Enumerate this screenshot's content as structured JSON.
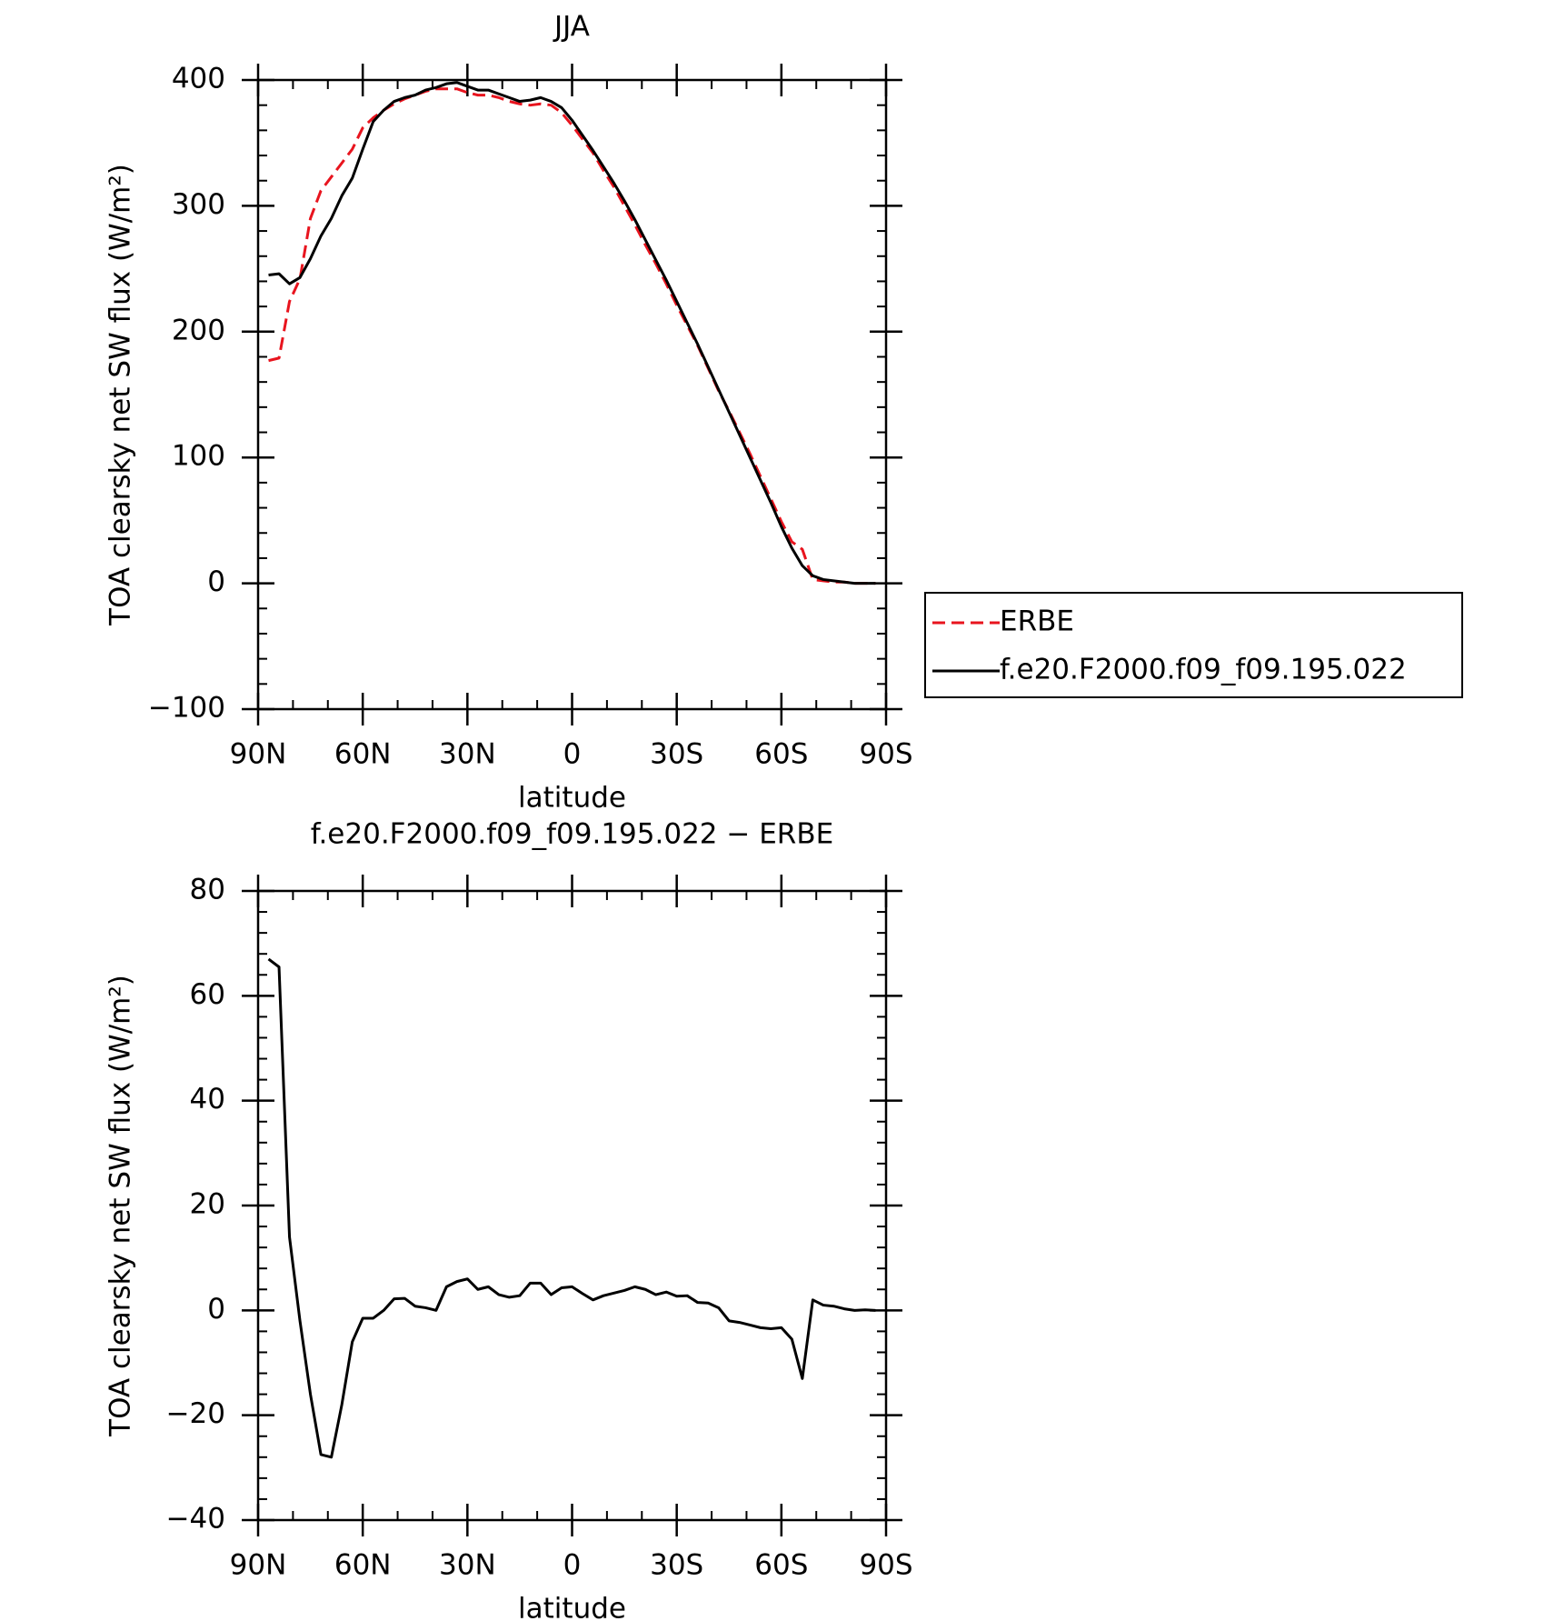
{
  "chart_data": [
    {
      "type": "line",
      "title": "JJA",
      "x_label": "latitude",
      "y_label": "TOA clearsky net SW flux (W/m²)",
      "x": [
        87,
        84,
        81,
        78,
        75,
        72,
        69,
        66,
        63,
        60,
        57,
        54,
        51,
        48,
        45,
        42,
        39,
        36,
        33,
        30,
        27,
        24,
        21,
        18,
        15,
        12,
        9,
        6,
        3,
        0,
        -3,
        -6,
        -9,
        -12,
        -15,
        -18,
        -21,
        -24,
        -27,
        -30,
        -33,
        -36,
        -39,
        -42,
        -45,
        -48,
        -51,
        -54,
        -57,
        -60,
        -63,
        -66,
        -69,
        -72,
        -75,
        -78,
        -81,
        -84,
        -87
      ],
      "series": [
        {
          "name": "ERBE",
          "color": "#e8141e",
          "linestyle": "dashed",
          "values": [
            177,
            179,
            224,
            242,
            290,
            312,
            323,
            334,
            345,
            362,
            370,
            376,
            381,
            385,
            388,
            391,
            393,
            393,
            393,
            390,
            388,
            388,
            386,
            383,
            381,
            380,
            381,
            380,
            374,
            364,
            353,
            342,
            328,
            315,
            300,
            285,
            269,
            254,
            238,
            221,
            205,
            189,
            171,
            153,
            137,
            120,
            103,
            85,
            67,
            49,
            33,
            27,
            3,
            2,
            1,
            1,
            0,
            0,
            0
          ]
        },
        {
          "name": "f.e20.F2000.f09_f09.195.022",
          "color": "#000000",
          "linestyle": "solid",
          "values": [
            245,
            246,
            238,
            243,
            258,
            276,
            290,
            308,
            322,
            345,
            367,
            376,
            383,
            386,
            388,
            392,
            394,
            397,
            398,
            395,
            392,
            392,
            389,
            386,
            383,
            384,
            386,
            383,
            378,
            368,
            356,
            344,
            331,
            318,
            304,
            289,
            273,
            257,
            241,
            224,
            207,
            190,
            172,
            154,
            136,
            118,
            100,
            82,
            64,
            45,
            28,
            14,
            6,
            3,
            2,
            1,
            0,
            0,
            0
          ]
        }
      ],
      "xlim": [
        90,
        -90
      ],
      "xticks": [
        {
          "value": 90,
          "label": "90N"
        },
        {
          "value": 60,
          "label": "60N"
        },
        {
          "value": 30,
          "label": "30N"
        },
        0,
        {
          "value": -30,
          "label": "30S"
        },
        {
          "value": -60,
          "label": "60S"
        },
        {
          "value": -90,
          "label": "90S"
        }
      ],
      "ylim": [
        -100,
        400
      ],
      "yticks": [
        {
          "value": -100,
          "label": "−100"
        },
        0,
        100,
        200,
        300,
        400
      ],
      "legend": "outside right"
    },
    {
      "type": "line",
      "title": "f.e20.F2000.f09_f09.195.022 − ERBE",
      "x_label": "latitude",
      "y_label": "TOA clearsky net SW flux (W/m²)",
      "x": [
        87,
        84,
        81,
        78,
        75,
        72,
        69,
        66,
        63,
        60,
        57,
        54,
        51,
        48,
        45,
        42,
        39,
        36,
        33,
        30,
        27,
        24,
        21,
        18,
        15,
        12,
        9,
        6,
        3,
        0,
        -3,
        -6,
        -9,
        -12,
        -15,
        -18,
        -21,
        -24,
        -27,
        -30,
        -33,
        -36,
        -39,
        -42,
        -45,
        -48,
        -51,
        -54,
        -57,
        -60,
        -63,
        -66,
        -69,
        -72,
        -75,
        -78,
        -81,
        -84,
        -87
      ],
      "series": [
        {
          "color": "#000000",
          "linestyle": "solid",
          "values": [
            67,
            65.5,
            14,
            -2,
            -16,
            -27.5,
            -28,
            -18,
            -6,
            -1.5,
            -1.5,
            0,
            2.2,
            2.3,
            0.8,
            0.5,
            0,
            4.5,
            5.5,
            6,
            4,
            4.5,
            3,
            2.5,
            2.8,
            5.2,
            5.2,
            3,
            4.3,
            4.5,
            3.2,
            2,
            2.8,
            3.3,
            3.8,
            4.5,
            4,
            3,
            3.5,
            2.7,
            2.8,
            1.5,
            1.4,
            0.5,
            -2,
            -2.3,
            -2.8,
            -3.3,
            -3.5,
            -3.3,
            -5.5,
            -13,
            2,
            1,
            0.8,
            0.3,
            0,
            0.1,
            0
          ]
        }
      ],
      "xlim": [
        90,
        -90
      ],
      "xticks": [
        {
          "value": 90,
          "label": "90N"
        },
        {
          "value": 60,
          "label": "60N"
        },
        {
          "value": 30,
          "label": "30N"
        },
        0,
        {
          "value": -30,
          "label": "30S"
        },
        {
          "value": -60,
          "label": "60S"
        },
        {
          "value": -90,
          "label": "90S"
        }
      ],
      "ylim": [
        -40,
        80
      ],
      "yticks": [
        {
          "value": -40,
          "label": "−40"
        },
        {
          "value": -20,
          "label": "−20"
        },
        0,
        20,
        40,
        60,
        80
      ]
    }
  ]
}
